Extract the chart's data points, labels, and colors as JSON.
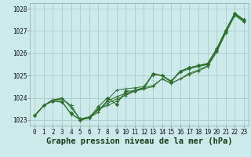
{
  "xlabel": "Graphe pression niveau de la mer (hPa)",
  "background_color": "#cceaea",
  "grid_color": "#aacccc",
  "line_color": "#2d6e2d",
  "x": [
    0,
    1,
    2,
    3,
    4,
    5,
    6,
    7,
    8,
    9,
    10,
    11,
    12,
    13,
    14,
    15,
    16,
    17,
    18,
    19,
    20,
    21,
    22,
    23
  ],
  "series": [
    [
      1023.2,
      1023.65,
      1023.9,
      1024.0,
      1023.55,
      1023.05,
      1023.1,
      1023.35,
      1023.9,
      1024.35,
      1024.4,
      1024.45,
      1024.5,
      1025.05,
      1025.0,
      1024.75,
      1025.15,
      1025.3,
      1025.4,
      1025.5,
      1026.15,
      1027.0,
      1027.75,
      1027.45
    ],
    [
      1023.2,
      1023.65,
      1023.9,
      1023.95,
      1023.65,
      1023.0,
      1023.1,
      1023.45,
      1023.85,
      1024.05,
      1024.2,
      1024.35,
      1024.45,
      1024.55,
      1024.85,
      1024.65,
      1024.85,
      1025.1,
      1025.25,
      1025.45,
      1026.1,
      1026.95,
      1027.75,
      1027.45
    ],
    [
      1023.2,
      1023.65,
      1023.9,
      1023.95,
      1023.65,
      1023.0,
      1023.1,
      1023.45,
      1023.75,
      1023.95,
      1024.1,
      1024.3,
      1024.4,
      1024.5,
      1024.85,
      1024.65,
      1024.85,
      1025.05,
      1025.2,
      1025.4,
      1026.05,
      1026.9,
      1027.7,
      1027.4
    ],
    [
      1023.2,
      1023.65,
      1023.9,
      1023.85,
      1023.25,
      1023.05,
      1023.15,
      1023.5,
      1023.65,
      1023.85,
      1024.15,
      1024.3,
      1024.4,
      1025.1,
      1025.0,
      1024.75,
      1025.2,
      1025.35,
      1025.45,
      1025.55,
      1026.2,
      1027.05,
      1027.8,
      1027.5
    ]
  ],
  "zigzag": [
    1023.2,
    1023.65,
    1023.85,
    1023.8,
    1023.3,
    1023.0,
    1023.1,
    1023.6,
    1024.0,
    1023.7,
    1024.3,
    1024.3,
    1024.45,
    1025.05,
    1025.0,
    1024.7,
    1025.2,
    1025.35,
    1025.45,
    1025.5,
    1026.2,
    1027.0,
    1027.8,
    1027.5
  ],
  "ylim": [
    1022.75,
    1028.25
  ],
  "yticks": [
    1023,
    1024,
    1025,
    1026,
    1027,
    1028
  ],
  "xticks": [
    0,
    1,
    2,
    3,
    4,
    5,
    6,
    7,
    8,
    9,
    10,
    11,
    12,
    13,
    14,
    15,
    16,
    17,
    18,
    19,
    20,
    21,
    22,
    23
  ],
  "tick_fontsize": 5.5,
  "xlabel_fontsize": 7.5
}
